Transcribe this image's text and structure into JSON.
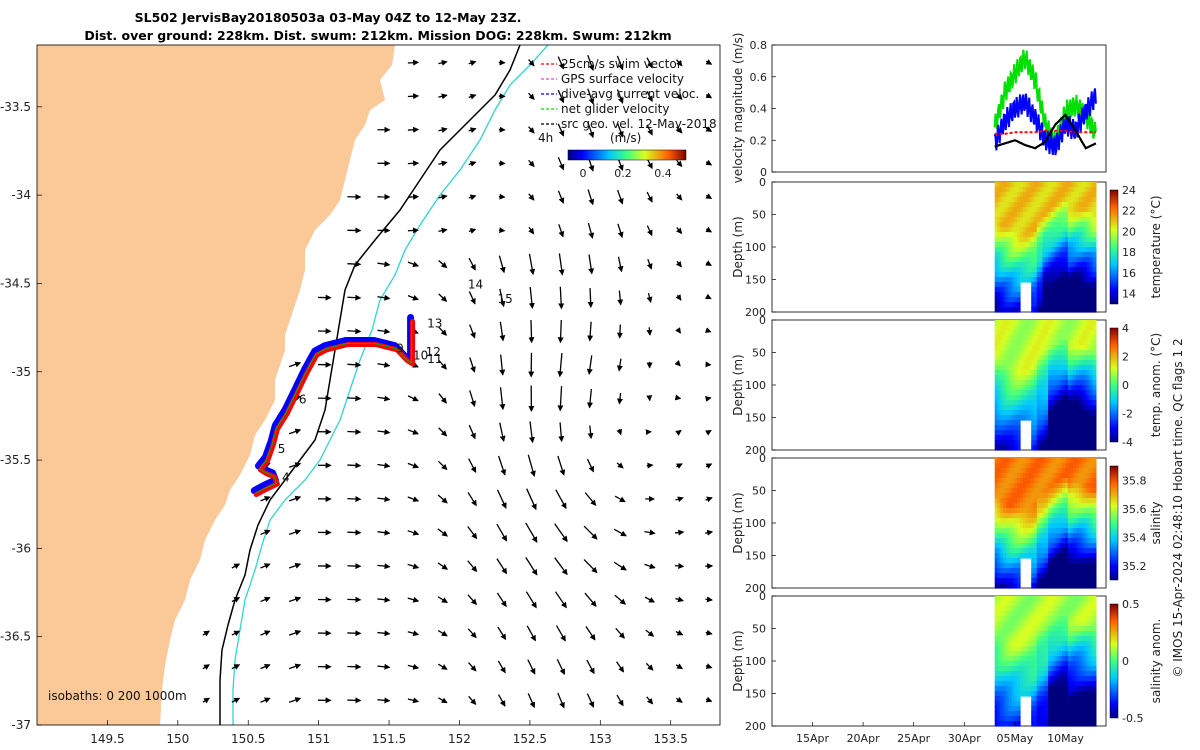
{
  "title": {
    "line1": "SL502 JervisBay20180503a 03-May 04Z to 12-May 23Z.",
    "line2": "Dist. over ground: 228km. Dist. swum: 212km. Mission DOG: 228km. Swum: 212km"
  },
  "map": {
    "xticks": [
      "149.5",
      "150",
      "150.5",
      "151",
      "151.5",
      "152",
      "152.5",
      "153",
      "153.5"
    ],
    "yticks": [
      "-33.5",
      "-34",
      "-34.5",
      "-35",
      "-35.5",
      "-36",
      "-36.5",
      "-37"
    ],
    "isobath_label": "isobaths: 0   200  1000m",
    "day_labels": [
      "4",
      "5",
      "6",
      "9",
      "10",
      "11",
      "12",
      "13",
      "14",
      "15"
    ],
    "land_color": "#fbc898",
    "isobath_200_color": "#2fd3d8",
    "isobath_1000_color": "#000000",
    "legend": [
      {
        "label": "25cm/s swim vector",
        "color": "#ff0000",
        "style": "dash"
      },
      {
        "label": "GPS surface velocity",
        "color": "#e040e0",
        "style": "dash"
      },
      {
        "label": "dive-avg current veloc.",
        "color": "#0000ff",
        "style": "dash"
      },
      {
        "label": "net glider velocity",
        "color": "#00e000",
        "style": "dash"
      },
      {
        "label": "src geo. vel. 12-May-2018",
        "color": "#000000",
        "style": "dash"
      }
    ],
    "legend_4h": "4h",
    "colorbar_title": "(m/s)",
    "colorbar_ticks": [
      "0",
      "0.2",
      "0.4"
    ]
  },
  "panels": {
    "velocity": {
      "ylabel": "velocity magnitude (m/s)",
      "yticks": [
        "0",
        "0.2",
        "0.4",
        "0.6",
        "0.8"
      ]
    },
    "temperature": {
      "ylabel": "Depth (m)",
      "clabel": "temperature (°C)",
      "cticks": [
        "14",
        "16",
        "18",
        "20",
        "22",
        "24"
      ]
    },
    "temp_anom": {
      "ylabel": "Depth (m)",
      "clabel": "temp. anom. (°C)",
      "cticks": [
        "-4",
        "-2",
        "0",
        "2",
        "4"
      ]
    },
    "salinity": {
      "ylabel": "Depth (m)",
      "clabel": "salinity",
      "cticks": [
        "35.2",
        "35.4",
        "35.6",
        "35.8"
      ]
    },
    "sal_anom": {
      "ylabel": "Depth (m)",
      "clabel": "salinity anom.",
      "cticks": [
        "-0.5",
        "0",
        "0.5"
      ]
    },
    "depth_ticks": [
      "0",
      "50",
      "100",
      "150",
      "200"
    ],
    "time_ticks": [
      "15Apr",
      "20Apr",
      "25Apr",
      "30Apr",
      "05May",
      "10May"
    ]
  },
  "footer": "© IMOS 15-Apr-2024 02:48:10 Hobart time. QC flags 1  2",
  "chart_data": [
    {
      "type": "scatter",
      "title": "SL502 JervisBay20180503a 03-May 04Z to 12-May 23Z.",
      "xlabel": "",
      "ylabel": "",
      "xlim": [
        149.0,
        153.85
      ],
      "ylim": [
        -37.0,
        -33.15
      ],
      "series": [
        {
          "name": "glider track",
          "points": [
            [
              150.55,
              -35.69
            ],
            [
              150.62,
              -35.66
            ],
            [
              150.7,
              -35.63
            ],
            [
              150.68,
              -35.59
            ],
            [
              150.62,
              -35.57
            ],
            [
              150.58,
              -35.55
            ],
            [
              150.63,
              -35.5
            ],
            [
              150.67,
              -35.41
            ],
            [
              150.7,
              -35.32
            ],
            [
              150.77,
              -35.23
            ],
            [
              150.85,
              -35.1
            ],
            [
              150.91,
              -35.0
            ],
            [
              150.98,
              -34.9
            ],
            [
              151.05,
              -34.87
            ],
            [
              151.2,
              -34.84
            ],
            [
              151.4,
              -34.84
            ],
            [
              151.55,
              -34.87
            ],
            [
              151.62,
              -34.93
            ],
            [
              151.66,
              -34.95
            ],
            [
              151.66,
              -34.82
            ],
            [
              151.66,
              -34.71
            ]
          ]
        }
      ],
      "day_markers": [
        {
          "label": "4",
          "lon": 150.74,
          "lat": -35.62
        },
        {
          "label": "5",
          "lon": 150.71,
          "lat": -35.46
        },
        {
          "label": "6",
          "lon": 150.86,
          "lat": -35.18
        },
        {
          "label": "9",
          "lon": 151.55,
          "lat": -34.89
        },
        {
          "label": "10",
          "lon": 151.67,
          "lat": -34.93
        },
        {
          "label": "11",
          "lon": 151.77,
          "lat": -34.95
        },
        {
          "label": "12",
          "lon": 151.76,
          "lat": -34.91
        },
        {
          "label": "13",
          "lon": 151.77,
          "lat": -34.75
        },
        {
          "label": "14",
          "lon": 152.06,
          "lat": -34.53
        },
        {
          "label": "15",
          "lon": 152.27,
          "lat": -34.61
        }
      ]
    },
    {
      "type": "line",
      "ylabel": "velocity magnitude (m/s)",
      "ylim": [
        0,
        0.8
      ],
      "x": [
        "05-03",
        "05-04",
        "05-05",
        "05-06",
        "05-07",
        "05-08",
        "05-09",
        "05-10",
        "05-11",
        "05-12",
        "05-13"
      ],
      "series": [
        {
          "color": "#00e000",
          "values": [
            0.28,
            0.5,
            0.62,
            0.72,
            0.58,
            0.3,
            0.18,
            0.38,
            0.42,
            0.36,
            0.24
          ]
        },
        {
          "color": "#0000ff",
          "values": [
            0.18,
            0.32,
            0.4,
            0.44,
            0.34,
            0.2,
            0.16,
            0.3,
            0.26,
            0.38,
            0.48
          ]
        },
        {
          "color": "#ff0000",
          "values": [
            0.24,
            0.24,
            0.25,
            0.25,
            0.25,
            0.26,
            0.26,
            0.26,
            0.25,
            0.25,
            0.25
          ]
        },
        {
          "color": "#000000",
          "values": [
            0.16,
            0.18,
            0.2,
            0.17,
            0.15,
            0.19,
            0.3,
            0.36,
            0.26,
            0.15,
            0.18
          ]
        }
      ]
    },
    {
      "type": "heatmap",
      "clabel": "temperature (°C)",
      "clim": [
        13,
        24
      ],
      "ylim": [
        0,
        200
      ]
    },
    {
      "type": "heatmap",
      "clabel": "temp. anom. (°C)",
      "clim": [
        -4,
        4
      ],
      "ylim": [
        0,
        200
      ]
    },
    {
      "type": "heatmap",
      "clabel": "salinity",
      "clim": [
        35.1,
        35.9
      ],
      "ylim": [
        0,
        200
      ]
    },
    {
      "type": "heatmap",
      "clabel": "salinity anom.",
      "clim": [
        -0.5,
        0.5
      ],
      "ylim": [
        0,
        200
      ]
    }
  ]
}
